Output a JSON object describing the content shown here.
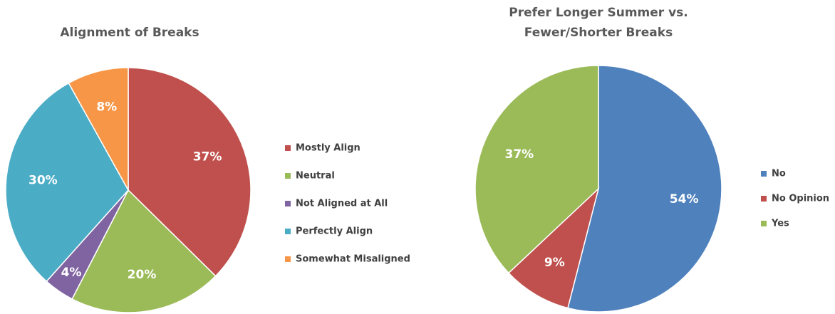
{
  "chart_data": [
    {
      "type": "pie",
      "title": [
        "Alignment of Breaks"
      ],
      "categories": [
        "Mostly Align",
        "Neutral",
        "Not Aligned at All",
        "Perfectly Align",
        "Somewhat Misaligned"
      ],
      "values": [
        37,
        20,
        4,
        30,
        8
      ],
      "value_labels": [
        "37%",
        "20%",
        "4%",
        "30%",
        "8%"
      ],
      "colors": [
        "#c0504d",
        "#9bbb59",
        "#8064a2",
        "#4bacc6",
        "#f79646"
      ],
      "legend": "right"
    },
    {
      "type": "pie",
      "title": [
        "Prefer Longer Summer vs.",
        "Fewer/Shorter Breaks"
      ],
      "categories": [
        "No",
        "No Opinion",
        "Yes"
      ],
      "values": [
        54,
        9,
        37
      ],
      "value_labels": [
        "54%",
        "9%",
        "37%"
      ],
      "colors": [
        "#4f81bd",
        "#c0504d",
        "#9bbb59"
      ],
      "legend": "right"
    }
  ]
}
